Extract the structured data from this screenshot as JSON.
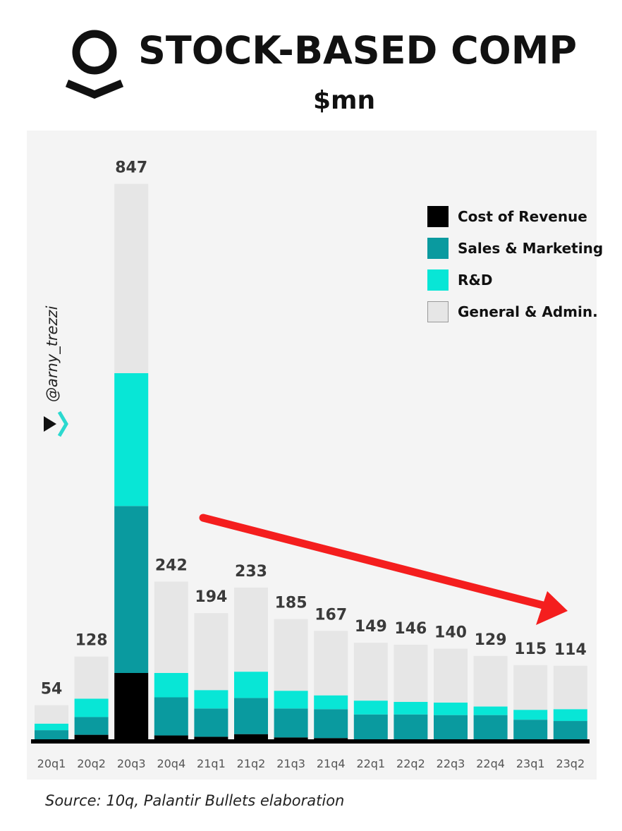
{
  "header": {
    "title": "STOCK-BASED COMP",
    "subtitle": "$mn"
  },
  "handle": "@arny_trezzi",
  "source": "Source: 10q, Palantir Bullets elaboration",
  "colors": {
    "cost_of_revenue": "#000000",
    "sales_marketing": "#0a9a9f",
    "rd": "#08e6d6",
    "general_admin": "#e6e6e6",
    "arrow": "#f41e1e"
  },
  "chart_data": {
    "type": "bar",
    "stacked": true,
    "categories": [
      "20q1",
      "20q2",
      "20q3",
      "20q4",
      "21q1",
      "21q2",
      "21q3",
      "21q4",
      "22q1",
      "22q2",
      "22q3",
      "22q4",
      "23q1",
      "23q2"
    ],
    "totals": [
      54,
      128,
      847,
      242,
      194,
      233,
      185,
      167,
      149,
      146,
      140,
      129,
      115,
      114
    ],
    "series": [
      {
        "name": "Cost of Revenue",
        "color": "#000000",
        "values": [
          2,
          9,
          103,
          8,
          6,
          10,
          5,
          4,
          2,
          2,
          1,
          1,
          1,
          0
        ]
      },
      {
        "name": "Sales & Marketing",
        "color": "#0a9a9f",
        "values": [
          14,
          27,
          254,
          58,
          43,
          55,
          44,
          44,
          38,
          38,
          38,
          38,
          31,
          30
        ]
      },
      {
        "name": "R&D",
        "color": "#08e6d6",
        "values": [
          10,
          28,
          202,
          37,
          28,
          40,
          27,
          21,
          21,
          19,
          19,
          13,
          15,
          18
        ]
      },
      {
        "name": "General & Admin.",
        "color": "#e6e6e6",
        "values": [
          28,
          64,
          288,
          139,
          117,
          128,
          109,
          98,
          88,
          87,
          82,
          77,
          68,
          66
        ]
      }
    ],
    "legend_position": "top-right",
    "ylim": [
      0,
      900
    ],
    "annotation": "downward red arrow from 20q4 to 23q2"
  }
}
